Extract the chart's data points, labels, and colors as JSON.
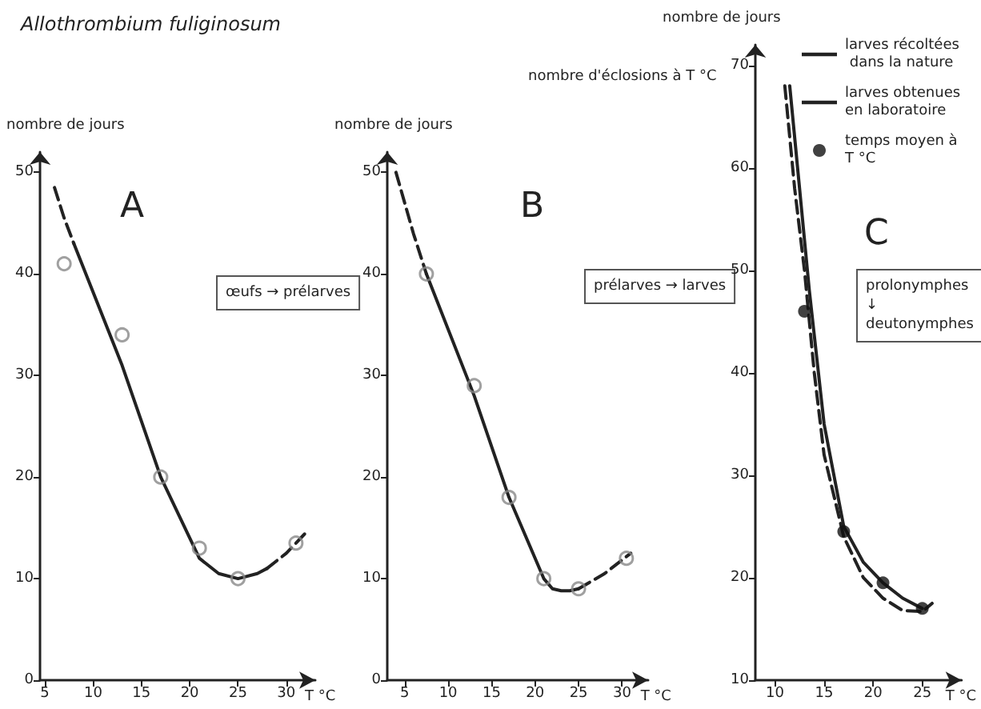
{
  "chart_data": [
    {
      "type": "line",
      "title": "Allothrombium fuliginosum",
      "xlabel": "T °C",
      "ylabel": "nombre de jours",
      "xlim": [
        4.5,
        33
      ],
      "xticks": [
        5,
        10,
        15,
        20,
        25,
        30
      ],
      "ylim": [
        0,
        52
      ],
      "yticks": [
        0,
        10,
        20,
        30,
        40,
        50
      ],
      "grid": false,
      "legend": false,
      "annotations": [
        "A",
        "œufs → prélarves"
      ],
      "series": [
        {
          "type": "line",
          "line_style": "dashed",
          "color": "#222222",
          "marker": "none",
          "x": [
            6,
            7,
            8
          ],
          "values": [
            48.5,
            45.5,
            43
          ]
        },
        {
          "type": "line",
          "line_style": "solid",
          "color": "#222222",
          "marker": "none",
          "x": [
            8,
            13,
            17,
            21,
            23,
            25,
            27,
            28
          ],
          "values": [
            43,
            31,
            20,
            12,
            10.5,
            10,
            10.5,
            11
          ]
        },
        {
          "type": "line",
          "line_style": "dashed",
          "color": "#222222",
          "marker": "none",
          "x": [
            28,
            30,
            32
          ],
          "values": [
            11,
            12.5,
            14.5
          ]
        },
        {
          "type": "scatter",
          "marker": "circle",
          "color": "#888888",
          "x": [
            7,
            13,
            17,
            21,
            25,
            31
          ],
          "values": [
            41,
            34,
            20,
            13,
            10,
            13.5
          ]
        }
      ]
    },
    {
      "type": "line",
      "xlabel": "T °C",
      "ylabel": "nombre de jours",
      "xlim": [
        3,
        33
      ],
      "xticks": [
        5,
        10,
        15,
        20,
        25,
        30
      ],
      "ylim": [
        0,
        52
      ],
      "yticks": [
        0,
        10,
        20,
        30,
        40,
        50
      ],
      "grid": false,
      "legend": false,
      "annotations": [
        "B",
        "prélarves → larves",
        "nombre d'éclosions à T °C"
      ],
      "series": [
        {
          "type": "line",
          "line_style": "dashed",
          "color": "#222222",
          "marker": "none",
          "x": [
            4,
            6,
            7.5
          ],
          "values": [
            50,
            44,
            40
          ]
        },
        {
          "type": "line",
          "line_style": "solid",
          "color": "#222222",
          "marker": "none",
          "x": [
            7.5,
            13,
            17,
            21,
            22,
            23,
            24,
            25
          ],
          "values": [
            40,
            28,
            18,
            10,
            9,
            8.8,
            8.8,
            9
          ]
        },
        {
          "type": "line",
          "line_style": "dashed",
          "color": "#222222",
          "marker": "none",
          "x": [
            25,
            28,
            31
          ],
          "values": [
            9,
            10.5,
            12.5
          ]
        },
        {
          "type": "scatter",
          "marker": "circle",
          "color": "#888888",
          "x": [
            7.5,
            13,
            17,
            21,
            25,
            30.5
          ],
          "values": [
            40,
            29,
            18,
            10,
            9,
            12
          ]
        }
      ]
    },
    {
      "type": "line",
      "xlabel": "T °C",
      "ylabel": "nombre de jours",
      "xlim": [
        8,
        29
      ],
      "xticks": [
        10,
        15,
        20,
        25
      ],
      "ylim": [
        10,
        72
      ],
      "yticks": [
        10,
        20,
        30,
        40,
        50,
        60,
        70
      ],
      "grid": false,
      "legend": "top right",
      "annotations": [
        "C",
        "prolonymphes\n↓\ndeutonymphes"
      ],
      "series": [
        {
          "name": "larves récoltées dans la nature",
          "type": "line",
          "line_style": "dashed",
          "color": "#222222",
          "marker": "none",
          "x": [
            11,
            12,
            13,
            14,
            15,
            17,
            19,
            21,
            23,
            25,
            26
          ],
          "values": [
            68,
            58,
            50,
            40,
            32,
            24,
            20,
            18,
            16.8,
            16.7,
            17.5
          ]
        },
        {
          "name": "larves obtenues en laboratoire",
          "type": "line",
          "line_style": "solid",
          "color": "#222222",
          "marker": "none",
          "x": [
            11.5,
            12.5,
            13.5,
            15,
            17,
            19,
            21,
            23,
            25
          ],
          "values": [
            68,
            58,
            48,
            35,
            25,
            21.5,
            19.5,
            18,
            17
          ]
        },
        {
          "name": "temps moyen à T °C",
          "type": "scatter",
          "marker": "circle",
          "color": "#111111",
          "x": [
            13,
            17,
            21,
            25
          ],
          "values": [
            46,
            24.5,
            19.5,
            17
          ]
        }
      ]
    }
  ]
}
